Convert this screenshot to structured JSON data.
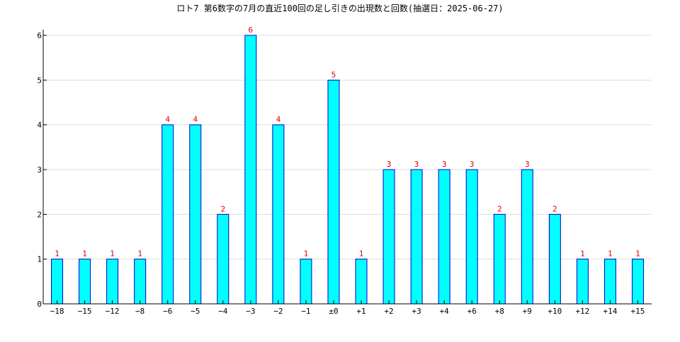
{
  "chart_data": {
    "type": "bar",
    "title": "ロト7 第6数字の7月の直近100回の足し引きの出現数と回数(抽選日：2025-06-27)",
    "xlabel": "",
    "ylabel": "",
    "categories": [
      "−18",
      "−15",
      "−12",
      "−8",
      "−6",
      "−5",
      "−4",
      "−3",
      "−2",
      "−1",
      "±0",
      "+1",
      "+2",
      "+3",
      "+4",
      "+6",
      "+8",
      "+9",
      "+10",
      "+12",
      "+14",
      "+15"
    ],
    "values": [
      1,
      1,
      1,
      1,
      4,
      4,
      2,
      6,
      4,
      1,
      5,
      1,
      3,
      3,
      3,
      3,
      2,
      3,
      2,
      1,
      1,
      1
    ],
    "ylim": [
      0,
      6
    ],
    "yticks": [
      "0",
      "1",
      "2",
      "3",
      "4",
      "5",
      "6"
    ],
    "grid": "horizontal",
    "colors": {
      "bar_fill": "#00ffff",
      "bar_stroke": "#0000cc",
      "label": "#dd0000",
      "grid": "#dddddd",
      "axis": "#000000"
    }
  }
}
